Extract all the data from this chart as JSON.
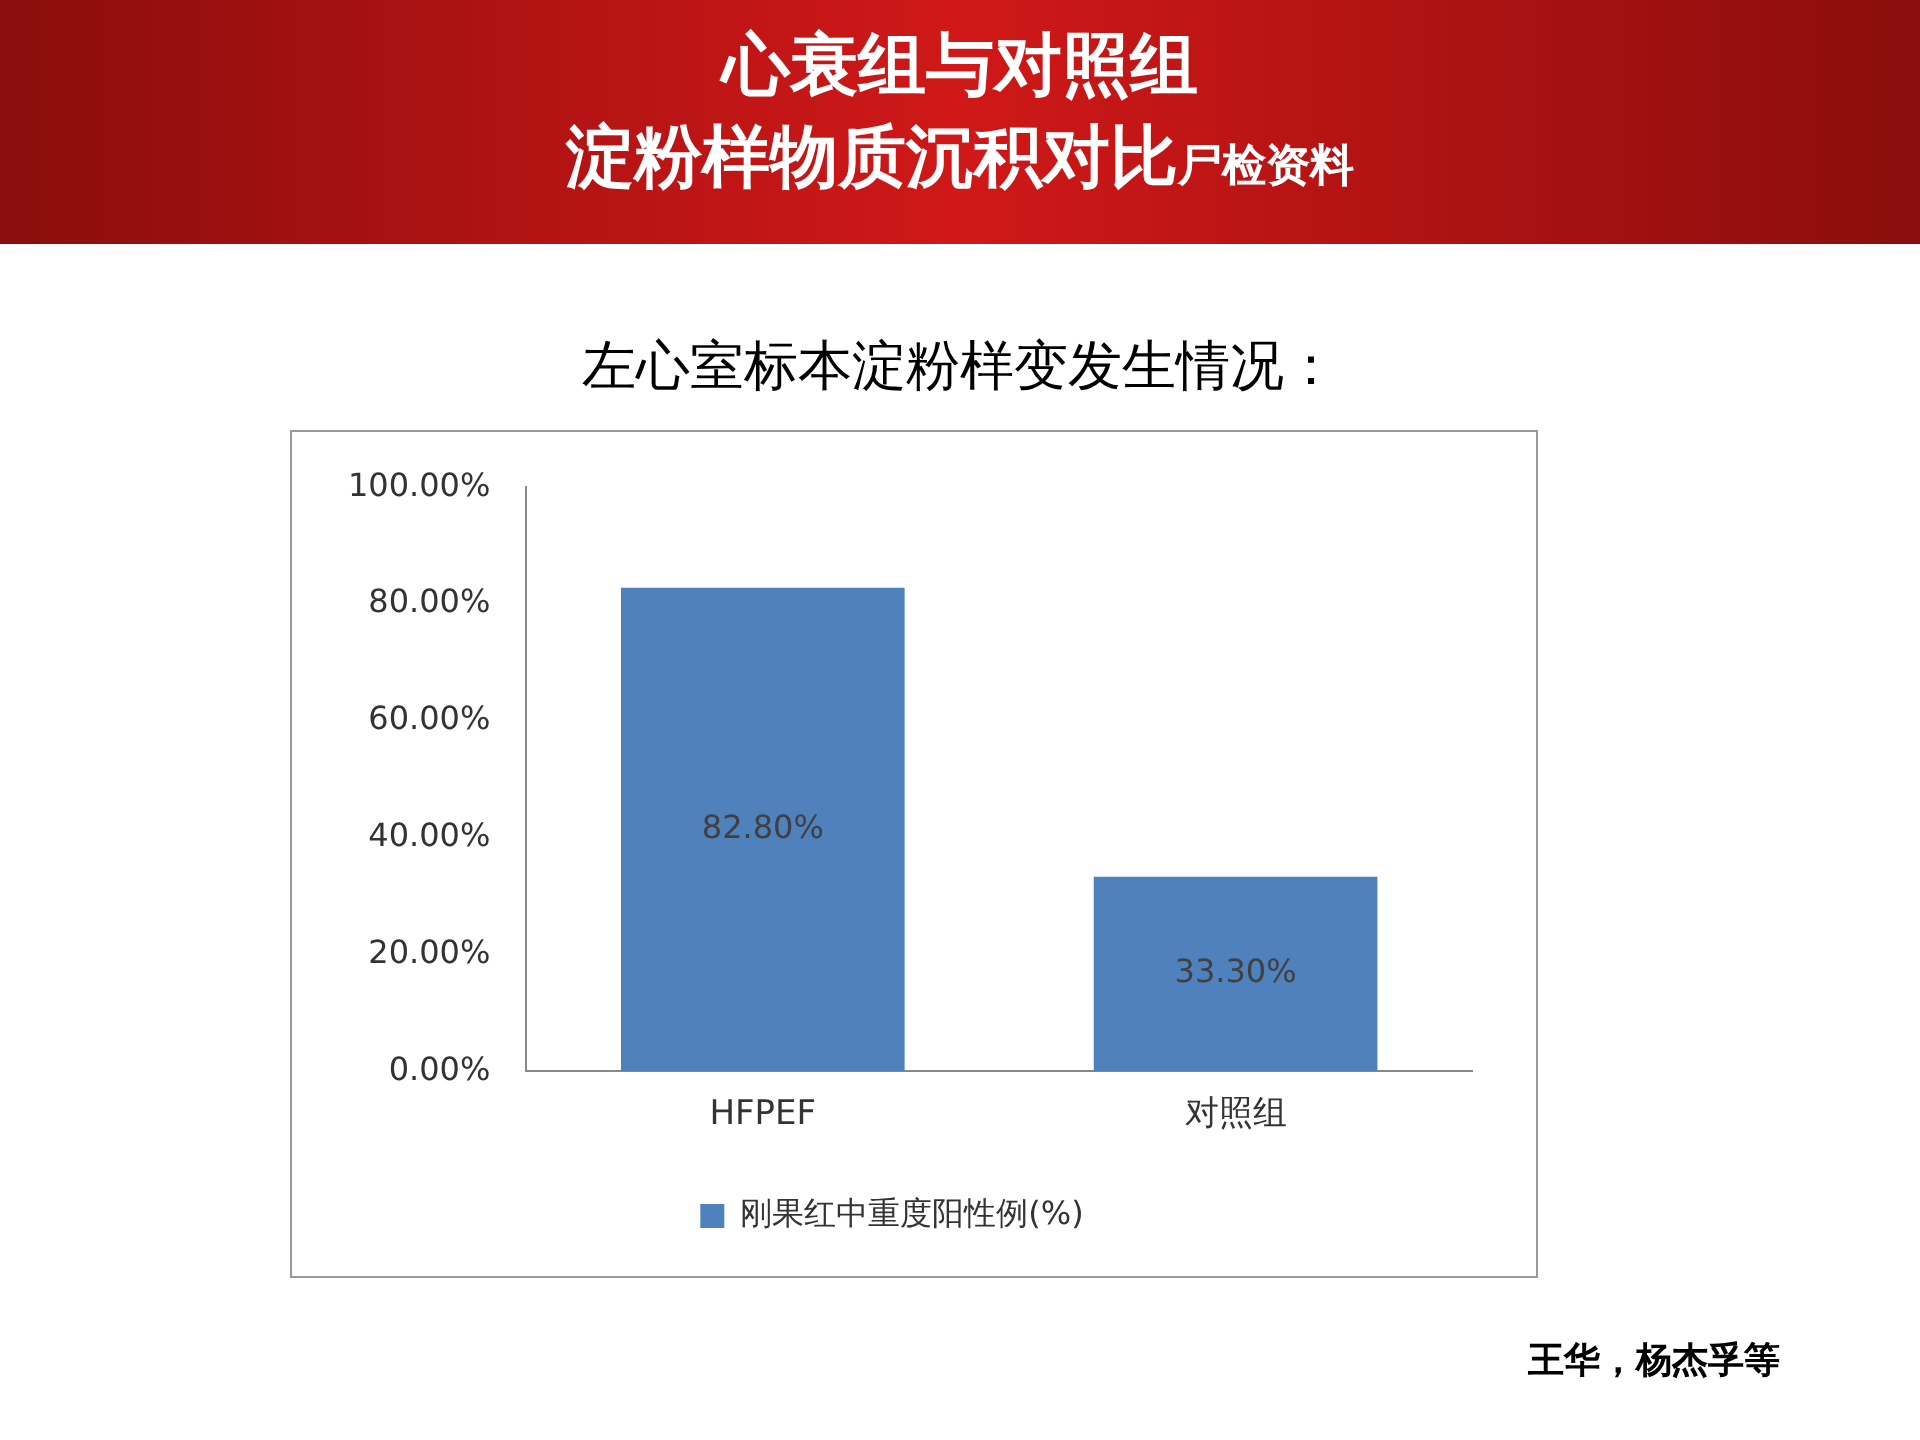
{
  "chart_data": {
    "type": "bar",
    "title": "心衰组与对照组",
    "subtitle": "淀粉样物质沉积对比",
    "annotations": [
      "尸检资料",
      "左心室标本淀粉样变发生情况：",
      "王华，杨杰孚等"
    ],
    "categories": [
      "HFPEF",
      "对照组"
    ],
    "series": [
      {
        "name": "刚果红中重度阳性例(%)",
        "color": "#4f81bd",
        "values": [
          82.8,
          33.3
        ],
        "value_labels": [
          "82.80%",
          "33.30%"
        ]
      }
    ],
    "ylim": [
      0,
      100
    ],
    "yticks": [
      {
        "value": 0,
        "label": "0.00%"
      },
      {
        "value": 20,
        "label": "20.00%"
      },
      {
        "value": 40,
        "label": "40.00%"
      },
      {
        "value": 60,
        "label": "60.00%"
      },
      {
        "value": 80,
        "label": "80.00%"
      },
      {
        "value": 100,
        "label": "100.00%"
      }
    ],
    "grid": false,
    "legend": "bottom"
  }
}
